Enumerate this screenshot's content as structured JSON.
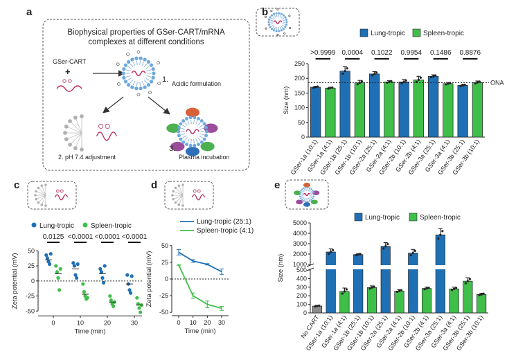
{
  "colors": {
    "lung": "#1f6fb4",
    "spleen": "#3fbf4a",
    "nocart": "#8c8c8c",
    "mrna": "#b8265b",
    "lipid": "#6fa8dc",
    "grey": "#b0b0b0"
  },
  "panel_a": {
    "label": "a",
    "title_line1": "Biophysical properties of GSer-CART/mRNA",
    "title_line2": "complexes at different conditions",
    "reagent": "GSer-CART",
    "plus": "+",
    "step1_num": "1.",
    "step1": "Acidic formulation",
    "step2": "2.  pH 7.4 adjustment",
    "step3_num": "3.",
    "step3": "Plasma incubation",
    "icons": [
      "arrow-icon",
      "nanoparticle-icon",
      "mrna-icon",
      "protein-corona-icon"
    ]
  },
  "legend": {
    "lung": "Lung-tropic",
    "spleen": "Spleen-tropic"
  },
  "legend_d": {
    "lung": "Lung-tropic (25:1)",
    "spleen": "Spleen-tropic (4:1)"
  },
  "chart_data": [
    {
      "panel": "b",
      "type": "bar",
      "ylabel": "Size (nm)",
      "ylim": [
        0,
        250
      ],
      "yticks": [
        0,
        50,
        100,
        150,
        200,
        250
      ],
      "reference_line": {
        "y": 185,
        "label": "ONA"
      },
      "categories": [
        "GSer-1a (10:1)",
        "GSer-1a (4:1)",
        "GSer-1b (25:1)",
        "GSer-1b (10:1)",
        "GSer-2a (25:1)",
        "GSer-2a (4:1)",
        "GSer-2b (10:1)",
        "GSer-2b (4:1)",
        "GSer-3a (25:1)",
        "GSer-3a (4:1)",
        "GSer-3b (25:1)",
        "GSer-3b (10:1)"
      ],
      "groups": [
        "lung",
        "spleen",
        "lung",
        "spleen",
        "lung",
        "spleen",
        "lung",
        "spleen",
        "lung",
        "spleen",
        "lung",
        "spleen"
      ],
      "values": [
        170,
        167,
        225,
        185,
        215,
        188,
        188,
        195,
        207,
        182,
        176,
        186
      ],
      "errors": [
        3,
        3,
        15,
        8,
        8,
        4,
        8,
        12,
        5,
        4,
        4,
        5
      ],
      "p_values": [
        ">0.9999",
        "0.0004",
        "0.1022",
        "0.9954",
        "0.1486",
        "0.8876"
      ]
    },
    {
      "panel": "c",
      "type": "scatter",
      "xlabel": "Time (min)",
      "ylabel": "Zeta potential (mV)",
      "ylim": [
        -60,
        55
      ],
      "yticks": [
        -50,
        -25,
        0,
        25,
        50
      ],
      "x": [
        0,
        10,
        20,
        30
      ],
      "series": [
        {
          "name": "Lung-tropic",
          "group": "lung",
          "means": [
            35,
            20,
            12,
            -5
          ],
          "points": [
            [
              43,
              38,
              32,
              28,
              45
            ],
            [
              30,
              25,
              10,
              5,
              28
            ],
            [
              20,
              15,
              5,
              -3,
              25
            ],
            [
              10,
              -5,
              -15,
              -20,
              8
            ]
          ]
        },
        {
          "name": "Spleen-tropic",
          "group": "spleen",
          "means": [
            12,
            -22,
            -35,
            -40
          ],
          "points": [
            [
              25,
              15,
              5,
              -15,
              20
            ],
            [
              -5,
              -18,
              -25,
              -30,
              -28
            ],
            [
              -25,
              -32,
              -38,
              -42,
              -35
            ],
            [
              -28,
              -38,
              -45,
              -52,
              -40
            ]
          ]
        }
      ],
      "p_values": [
        "0.0125",
        "<0.0001",
        "<0.0001",
        "<0.0001"
      ]
    },
    {
      "panel": "d",
      "type": "line",
      "xlabel": "Time (min)",
      "ylabel": "Zeta potential (mV)",
      "ylim": [
        -55,
        55
      ],
      "yticks": [
        -50,
        -25,
        0,
        25,
        50
      ],
      "x": [
        0,
        10,
        20,
        30
      ],
      "series": [
        {
          "name": "Lung-tropic (25:1)",
          "group": "lung",
          "values": [
            40,
            27,
            22,
            11
          ],
          "errors": [
            4,
            2,
            1,
            4
          ]
        },
        {
          "name": "Spleen-tropic (4:1)",
          "group": "spleen",
          "values": [
            21,
            -25,
            -38,
            -44
          ],
          "errors": [
            1,
            4,
            5,
            3
          ]
        }
      ]
    },
    {
      "panel": "e",
      "type": "bar",
      "ylabel": "Size (nm)",
      "axis_break": true,
      "lower_yticks": [
        0,
        100,
        200,
        300,
        400,
        500
      ],
      "upper_yticks": [
        1000,
        2000,
        3000,
        4000,
        5000
      ],
      "categories": [
        "No CART",
        "GSer-1a (10:1)",
        "GSer-1a (4:1)",
        "GSer-1b (25:1)",
        "GSer-1b (10:1)",
        "GSer-2a (25:1)",
        "GSer-2a (4:1)",
        "GSer-2b (10:1)",
        "GSer-2b (4:1)",
        "GSer-3a (25:1)",
        "GSer-3a (4:1)",
        "GSer-3b (25:1)",
        "GSer-3b (10:1)"
      ],
      "groups": [
        "nocart",
        "lung",
        "spleen",
        "lung",
        "spleen",
        "lung",
        "spleen",
        "lung",
        "spleen",
        "lung",
        "spleen",
        "spleen",
        "spleen"
      ],
      "values": [
        80,
        2200,
        250,
        1950,
        295,
        2750,
        255,
        2100,
        285,
        3850,
        280,
        370,
        215
      ],
      "errors": [
        8,
        300,
        40,
        100,
        20,
        350,
        15,
        350,
        15,
        600,
        20,
        40,
        15
      ]
    }
  ]
}
